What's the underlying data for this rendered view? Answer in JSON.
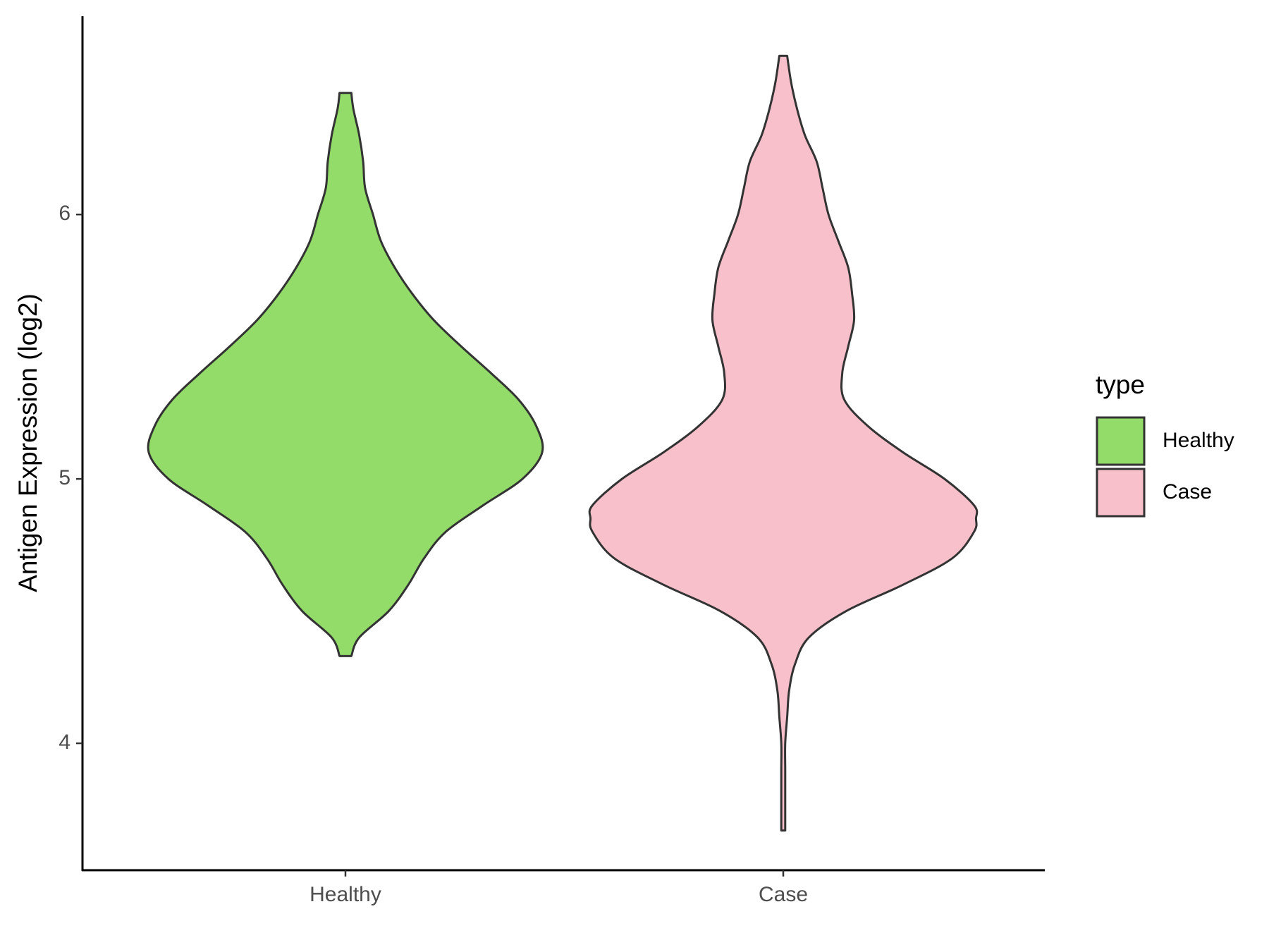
{
  "chart_data": {
    "type": "violin",
    "y_label": "Antigen Expression (log2)",
    "categories": [
      "Healthy",
      "Case"
    ],
    "ylim": [
      3.52,
      6.75
    ],
    "yticks": [
      4,
      5,
      6
    ],
    "legend_title": "type",
    "legend_position": "right",
    "series": [
      {
        "name": "Healthy",
        "color": "#93dc6a",
        "y": [
          4.33,
          4.4,
          4.5,
          4.6,
          4.7,
          4.8,
          4.9,
          5.0,
          5.1,
          5.2,
          5.3,
          5.4,
          5.5,
          5.6,
          5.7,
          5.8,
          5.9,
          6.0,
          6.1,
          6.2,
          6.3,
          6.4,
          6.46
        ],
        "density": [
          0.03,
          0.07,
          0.22,
          0.32,
          0.4,
          0.51,
          0.7,
          0.9,
          1.0,
          0.97,
          0.88,
          0.74,
          0.59,
          0.45,
          0.34,
          0.25,
          0.18,
          0.14,
          0.1,
          0.09,
          0.07,
          0.04,
          0.03
        ]
      },
      {
        "name": "Case",
        "color": "#f7c0cb",
        "y": [
          3.67,
          3.8,
          3.9,
          4.0,
          4.1,
          4.2,
          4.3,
          4.4,
          4.5,
          4.6,
          4.7,
          4.8,
          4.85,
          4.9,
          5.0,
          5.1,
          5.2,
          5.3,
          5.4,
          5.5,
          5.6,
          5.7,
          5.8,
          5.9,
          6.0,
          6.1,
          6.2,
          6.3,
          6.4,
          6.5,
          6.6
        ],
        "density": [
          0.01,
          0.01,
          0.01,
          0.01,
          0.02,
          0.03,
          0.06,
          0.13,
          0.32,
          0.61,
          0.86,
          0.97,
          0.98,
          0.97,
          0.82,
          0.61,
          0.43,
          0.31,
          0.3,
          0.33,
          0.36,
          0.35,
          0.33,
          0.28,
          0.23,
          0.2,
          0.17,
          0.11,
          0.07,
          0.04,
          0.02
        ]
      }
    ]
  }
}
